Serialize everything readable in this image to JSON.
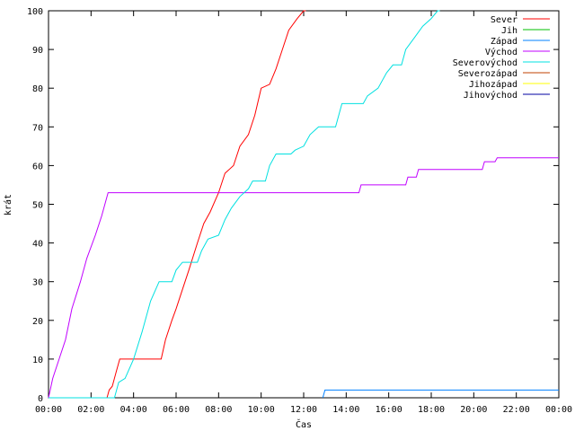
{
  "chart_data": {
    "type": "line",
    "title": "",
    "xlabel": "Čas",
    "ylabel": "krát",
    "x_unit": "hours",
    "xlim": [
      0,
      24
    ],
    "ylim": [
      0,
      100
    ],
    "x_tick_labels": [
      "00:00",
      "02:00",
      "04:00",
      "06:00",
      "08:00",
      "10:00",
      "12:00",
      "14:00",
      "16:00",
      "18:00",
      "20:00",
      "22:00",
      "00:00"
    ],
    "y_tick_labels": [
      "0",
      "10",
      "20",
      "30",
      "40",
      "50",
      "60",
      "70",
      "80",
      "90",
      "100"
    ],
    "legend_position": "top-right",
    "grid": false,
    "series": [
      {
        "name": "Sever",
        "color": "#ff0000",
        "points": [
          [
            0,
            0
          ],
          [
            2.75,
            0
          ],
          [
            2.85,
            2
          ],
          [
            3.0,
            3
          ],
          [
            3.2,
            7
          ],
          [
            3.35,
            10
          ],
          [
            5.3,
            10
          ],
          [
            5.5,
            15
          ],
          [
            5.8,
            20
          ],
          [
            6.0,
            23
          ],
          [
            6.3,
            28
          ],
          [
            6.6,
            33
          ],
          [
            7.0,
            40
          ],
          [
            7.3,
            45
          ],
          [
            7.6,
            48
          ],
          [
            8.0,
            53
          ],
          [
            8.3,
            58
          ],
          [
            8.7,
            60
          ],
          [
            9.0,
            65
          ],
          [
            9.4,
            68
          ],
          [
            9.7,
            73
          ],
          [
            10.0,
            80
          ],
          [
            10.4,
            81
          ],
          [
            10.7,
            85
          ],
          [
            11.0,
            90
          ],
          [
            11.3,
            95
          ],
          [
            11.7,
            98
          ],
          [
            12.0,
            100
          ],
          [
            12.1,
            100
          ]
        ]
      },
      {
        "name": "Jih",
        "color": "#00c000",
        "points": []
      },
      {
        "name": "Západ",
        "color": "#0080ff",
        "points": [
          [
            12.9,
            0
          ],
          [
            13.0,
            2
          ],
          [
            24,
            2
          ]
        ]
      },
      {
        "name": "Východ",
        "color": "#c000ff",
        "points": [
          [
            0,
            0
          ],
          [
            0.2,
            5
          ],
          [
            0.5,
            10
          ],
          [
            0.8,
            15
          ],
          [
            1.1,
            23
          ],
          [
            1.5,
            30
          ],
          [
            1.8,
            36
          ],
          [
            2.2,
            42
          ],
          [
            2.5,
            47
          ],
          [
            2.8,
            53
          ],
          [
            14.6,
            53
          ],
          [
            14.7,
            55
          ],
          [
            16.8,
            55
          ],
          [
            16.9,
            57
          ],
          [
            17.3,
            57
          ],
          [
            17.4,
            59
          ],
          [
            20.4,
            59
          ],
          [
            20.5,
            61
          ],
          [
            21.0,
            61
          ],
          [
            21.1,
            62
          ],
          [
            24,
            62
          ]
        ]
      },
      {
        "name": "Severovýchod",
        "color": "#00e0e0",
        "points": [
          [
            0,
            0
          ],
          [
            3.1,
            0
          ],
          [
            3.3,
            4
          ],
          [
            3.6,
            5
          ],
          [
            4.0,
            10
          ],
          [
            4.4,
            17
          ],
          [
            4.8,
            25
          ],
          [
            5.2,
            30
          ],
          [
            5.8,
            30
          ],
          [
            6.0,
            33
          ],
          [
            6.3,
            35
          ],
          [
            7.0,
            35
          ],
          [
            7.2,
            38
          ],
          [
            7.5,
            41
          ],
          [
            8.0,
            42
          ],
          [
            8.3,
            46
          ],
          [
            8.6,
            49
          ],
          [
            9.0,
            52
          ],
          [
            9.4,
            54
          ],
          [
            9.6,
            56
          ],
          [
            10.2,
            56
          ],
          [
            10.4,
            60
          ],
          [
            10.7,
            63
          ],
          [
            11.4,
            63
          ],
          [
            11.6,
            64
          ],
          [
            12.0,
            65
          ],
          [
            12.3,
            68
          ],
          [
            12.7,
            70
          ],
          [
            13.5,
            70
          ],
          [
            13.8,
            76
          ],
          [
            14.8,
            76
          ],
          [
            15.0,
            78
          ],
          [
            15.5,
            80
          ],
          [
            15.9,
            84
          ],
          [
            16.2,
            86
          ],
          [
            16.6,
            86
          ],
          [
            16.8,
            90
          ],
          [
            17.2,
            93
          ],
          [
            17.6,
            96
          ],
          [
            18.0,
            98
          ],
          [
            18.3,
            100
          ],
          [
            18.4,
            100
          ]
        ]
      },
      {
        "name": "Severozápad",
        "color": "#c04000",
        "points": []
      },
      {
        "name": "Jihozápad",
        "color": "#ffff00",
        "points": []
      },
      {
        "name": "Jihovýchod",
        "color": "#0000a0",
        "points": []
      }
    ]
  }
}
